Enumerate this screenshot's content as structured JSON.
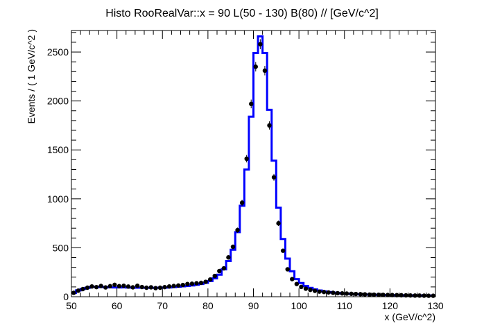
{
  "chart_data": {
    "type": "line",
    "title": "Histo RooRealVar::x = 90  L(50 - 130) B(80) // [GeV/c^2]",
    "xlabel": "x (GeV/c^2)",
    "ylabel": "Events / ( 1 GeV/c^2 )",
    "xlim": [
      50,
      130
    ],
    "ylim": [
      0,
      2720
    ],
    "grid": false,
    "legend": "none",
    "x_ticks": [
      50,
      60,
      70,
      80,
      90,
      100,
      110,
      120,
      130
    ],
    "y_ticks": [
      0,
      500,
      1000,
      1500,
      2000,
      2500
    ],
    "x_tick_labels": [
      "50",
      "60",
      "70",
      "80",
      "90",
      "100",
      "110",
      "120",
      "130"
    ],
    "y_tick_labels": [
      "0",
      "500",
      "1000",
      "1500",
      "2000",
      "2500"
    ],
    "colors": {
      "data": "#000000",
      "model": "#0000ff",
      "axes": "#000000"
    },
    "bin_edges": [
      50,
      51,
      52,
      53,
      54,
      55,
      56,
      57,
      58,
      59,
      60,
      61,
      62,
      63,
      64,
      65,
      66,
      67,
      68,
      69,
      70,
      71,
      72,
      73,
      74,
      75,
      76,
      77,
      78,
      79,
      80,
      81,
      82,
      83,
      84,
      85,
      86,
      87,
      88,
      89,
      90,
      91,
      92,
      93,
      94,
      95,
      96,
      97,
      98,
      99,
      100,
      101,
      102,
      103,
      104,
      105,
      106,
      107,
      108,
      109,
      110,
      111,
      112,
      113,
      114,
      115,
      116,
      117,
      118,
      119,
      120,
      121,
      122,
      123,
      124,
      125,
      126,
      127,
      128,
      129,
      130
    ],
    "series": [
      {
        "role": "data-points",
        "x": [
          50.5,
          51.5,
          52.5,
          53.5,
          54.5,
          55.5,
          56.5,
          57.5,
          58.5,
          59.5,
          60.5,
          61.5,
          62.5,
          63.5,
          64.5,
          65.5,
          66.5,
          67.5,
          68.5,
          69.5,
          70.5,
          71.5,
          72.5,
          73.5,
          74.5,
          75.5,
          76.5,
          77.5,
          78.5,
          79.5,
          80.5,
          81.5,
          82.5,
          83.5,
          84.5,
          85.5,
          86.5,
          87.5,
          88.5,
          89.5,
          90.5,
          91.5,
          92.5,
          93.5,
          94.5,
          95.5,
          96.5,
          97.5,
          98.5,
          99.5,
          100.5,
          101.5,
          102.5,
          103.5,
          104.5,
          105.5,
          106.5,
          107.5,
          108.5,
          109.5,
          110.5,
          111.5,
          112.5,
          113.5,
          114.5,
          115.5,
          116.5,
          117.5,
          118.5,
          119.5,
          120.5,
          121.5,
          122.5,
          123.5,
          124.5,
          125.5,
          126.5,
          127.5,
          128.5,
          129.5
        ],
        "y": [
          40,
          62,
          78,
          92,
          105,
          98,
          110,
          95,
          108,
          122,
          108,
          112,
          104,
          96,
          112,
          99,
          92,
          96,
          88,
          92,
          98,
          105,
          110,
          115,
          120,
          130,
          133,
          138,
          142,
          152,
          176,
          212,
          262,
          290,
          402,
          510,
          680,
          960,
          1410,
          1970,
          2350,
          2580,
          2310,
          1750,
          1220,
          750,
          470,
          280,
          180,
          130,
          100,
          82,
          70,
          60,
          52,
          48,
          44,
          40,
          36,
          34,
          32,
          30,
          28,
          26,
          24,
          22,
          21,
          20,
          19,
          18,
          17,
          16,
          15,
          14,
          13,
          12,
          12,
          11,
          10,
          10
        ]
      },
      {
        "role": "model-histogram",
        "y": [
          38,
          65,
          80,
          90,
          100,
          102,
          98,
          100,
          96,
          95,
          95,
          96,
          94,
          93,
          92,
          92,
          91,
          91,
          91,
          92,
          93,
          95,
          98,
          102,
          106,
          110,
          115,
          122,
          130,
          142,
          160,
          188,
          225,
          280,
          365,
          480,
          660,
          930,
          1300,
          1840,
          2490,
          2660,
          2490,
          1910,
          1390,
          910,
          590,
          390,
          260,
          180,
          140,
          110,
          90,
          75,
          64,
          55,
          48,
          42,
          38,
          34,
          31,
          28,
          26,
          24,
          22,
          21,
          20,
          19,
          18,
          17,
          16,
          15,
          15,
          14,
          14,
          13,
          13,
          12,
          12,
          12
        ]
      }
    ]
  }
}
